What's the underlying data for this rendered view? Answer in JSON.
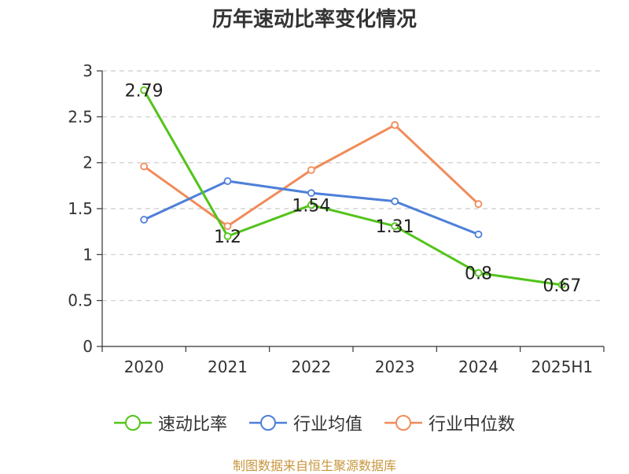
{
  "title": "历年速动比率变化情况",
  "source": "制图数据来自恒生聚源数据库",
  "chart_data": {
    "type": "line",
    "categories": [
      "2020",
      "2021",
      "2022",
      "2023",
      "2024",
      "2025H1"
    ],
    "ylim": [
      0,
      3
    ],
    "yticks": [
      "0",
      "0.5",
      "1",
      "1.5",
      "2",
      "2.5",
      "3"
    ],
    "grid": true,
    "legend_position": "bottom",
    "series": [
      {
        "name": "速动比率",
        "color": "#52c41a",
        "values": [
          2.79,
          1.2,
          1.54,
          1.31,
          0.8,
          0.67
        ],
        "labels": [
          "2.79",
          "1.2",
          "1.54",
          "1.31",
          "0.8",
          "0.67"
        ]
      },
      {
        "name": "行业均值",
        "color": "#4e7fd9",
        "values": [
          1.38,
          1.8,
          1.67,
          1.58,
          1.22,
          null
        ]
      },
      {
        "name": "行业中位数",
        "color": "#f08c5a",
        "values": [
          1.96,
          1.31,
          1.92,
          2.41,
          1.55,
          null
        ]
      }
    ]
  }
}
